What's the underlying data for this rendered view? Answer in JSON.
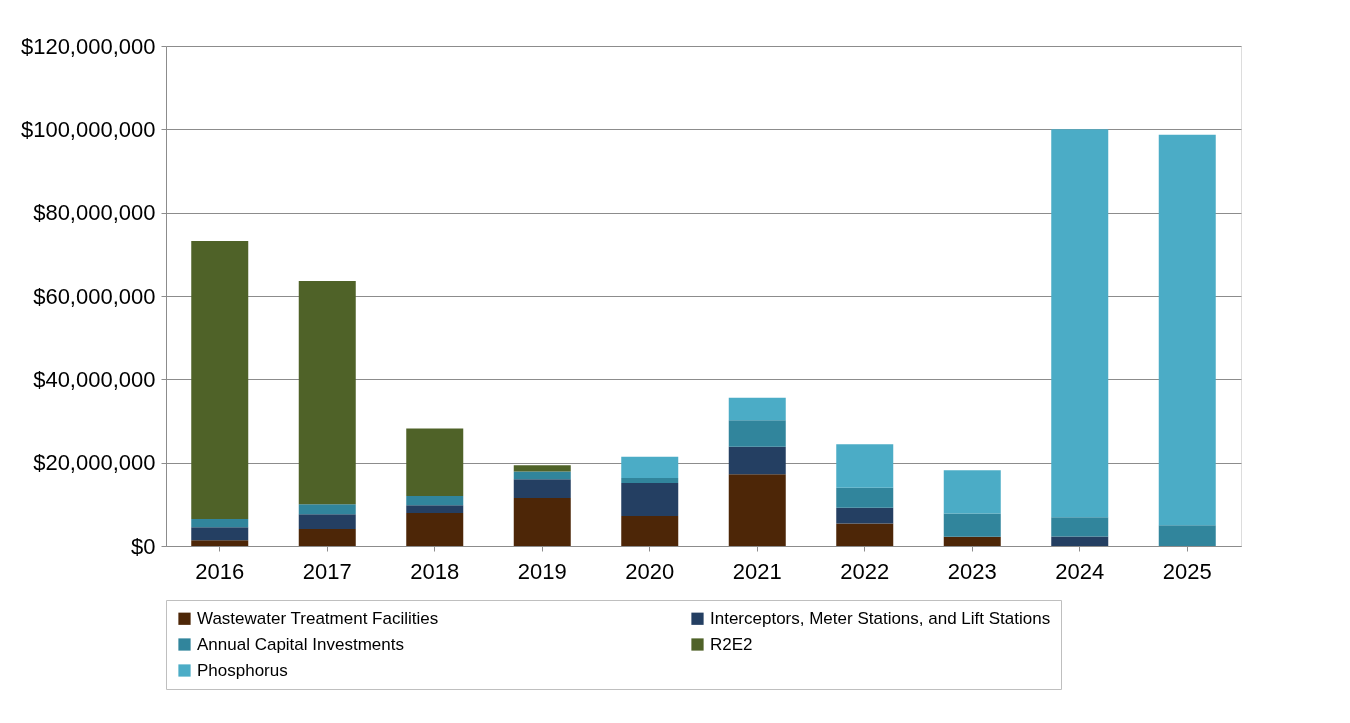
{
  "chart_data": {
    "type": "bar",
    "stacked": true,
    "categories": [
      "2016",
      "2017",
      "2018",
      "2019",
      "2020",
      "2021",
      "2022",
      "2023",
      "2024",
      "2025"
    ],
    "series": [
      {
        "name": "Wastewater Treatment Facilities",
        "color": "#4d2607",
        "values": [
          1400000,
          4100000,
          7900000,
          11500000,
          7200000,
          17200000,
          5400000,
          2200000,
          0,
          0
        ]
      },
      {
        "name": "Interceptors, Meter Stations, and Lift Stations",
        "color": "#243f62",
        "values": [
          3100000,
          3500000,
          1900000,
          4500000,
          7900000,
          6600000,
          3800000,
          0,
          2300000,
          0
        ]
      },
      {
        "name": "Annual Capital Investments",
        "color": "#31859c",
        "values": [
          2000000,
          2400000,
          2200000,
          1900000,
          1200000,
          6400000,
          4800000,
          5600000,
          4600000,
          5000000
        ]
      },
      {
        "name": "R2E2",
        "color": "#4f6228",
        "values": [
          66700000,
          53600000,
          16200000,
          1500000,
          0,
          0,
          0,
          0,
          0,
          0
        ]
      },
      {
        "name": "Phosphorus",
        "color": "#4bacc6",
        "values": [
          0,
          0,
          0,
          0,
          5100000,
          5400000,
          10400000,
          10400000,
          93100000,
          93700000
        ]
      }
    ],
    "ylim": [
      0,
      120000000
    ],
    "yticks": [
      {
        "value": 0,
        "label": "$0"
      },
      {
        "value": 20000000,
        "label": "$20,000,000"
      },
      {
        "value": 40000000,
        "label": "$40,000,000"
      },
      {
        "value": 60000000,
        "label": "$60,000,000"
      },
      {
        "value": 80000000,
        "label": "$80,000,000"
      },
      {
        "value": 100000000,
        "label": "$100,000,000"
      },
      {
        "value": 120000000,
        "label": "$120,000,000"
      }
    ],
    "grid": "y",
    "legend": "bottom"
  }
}
